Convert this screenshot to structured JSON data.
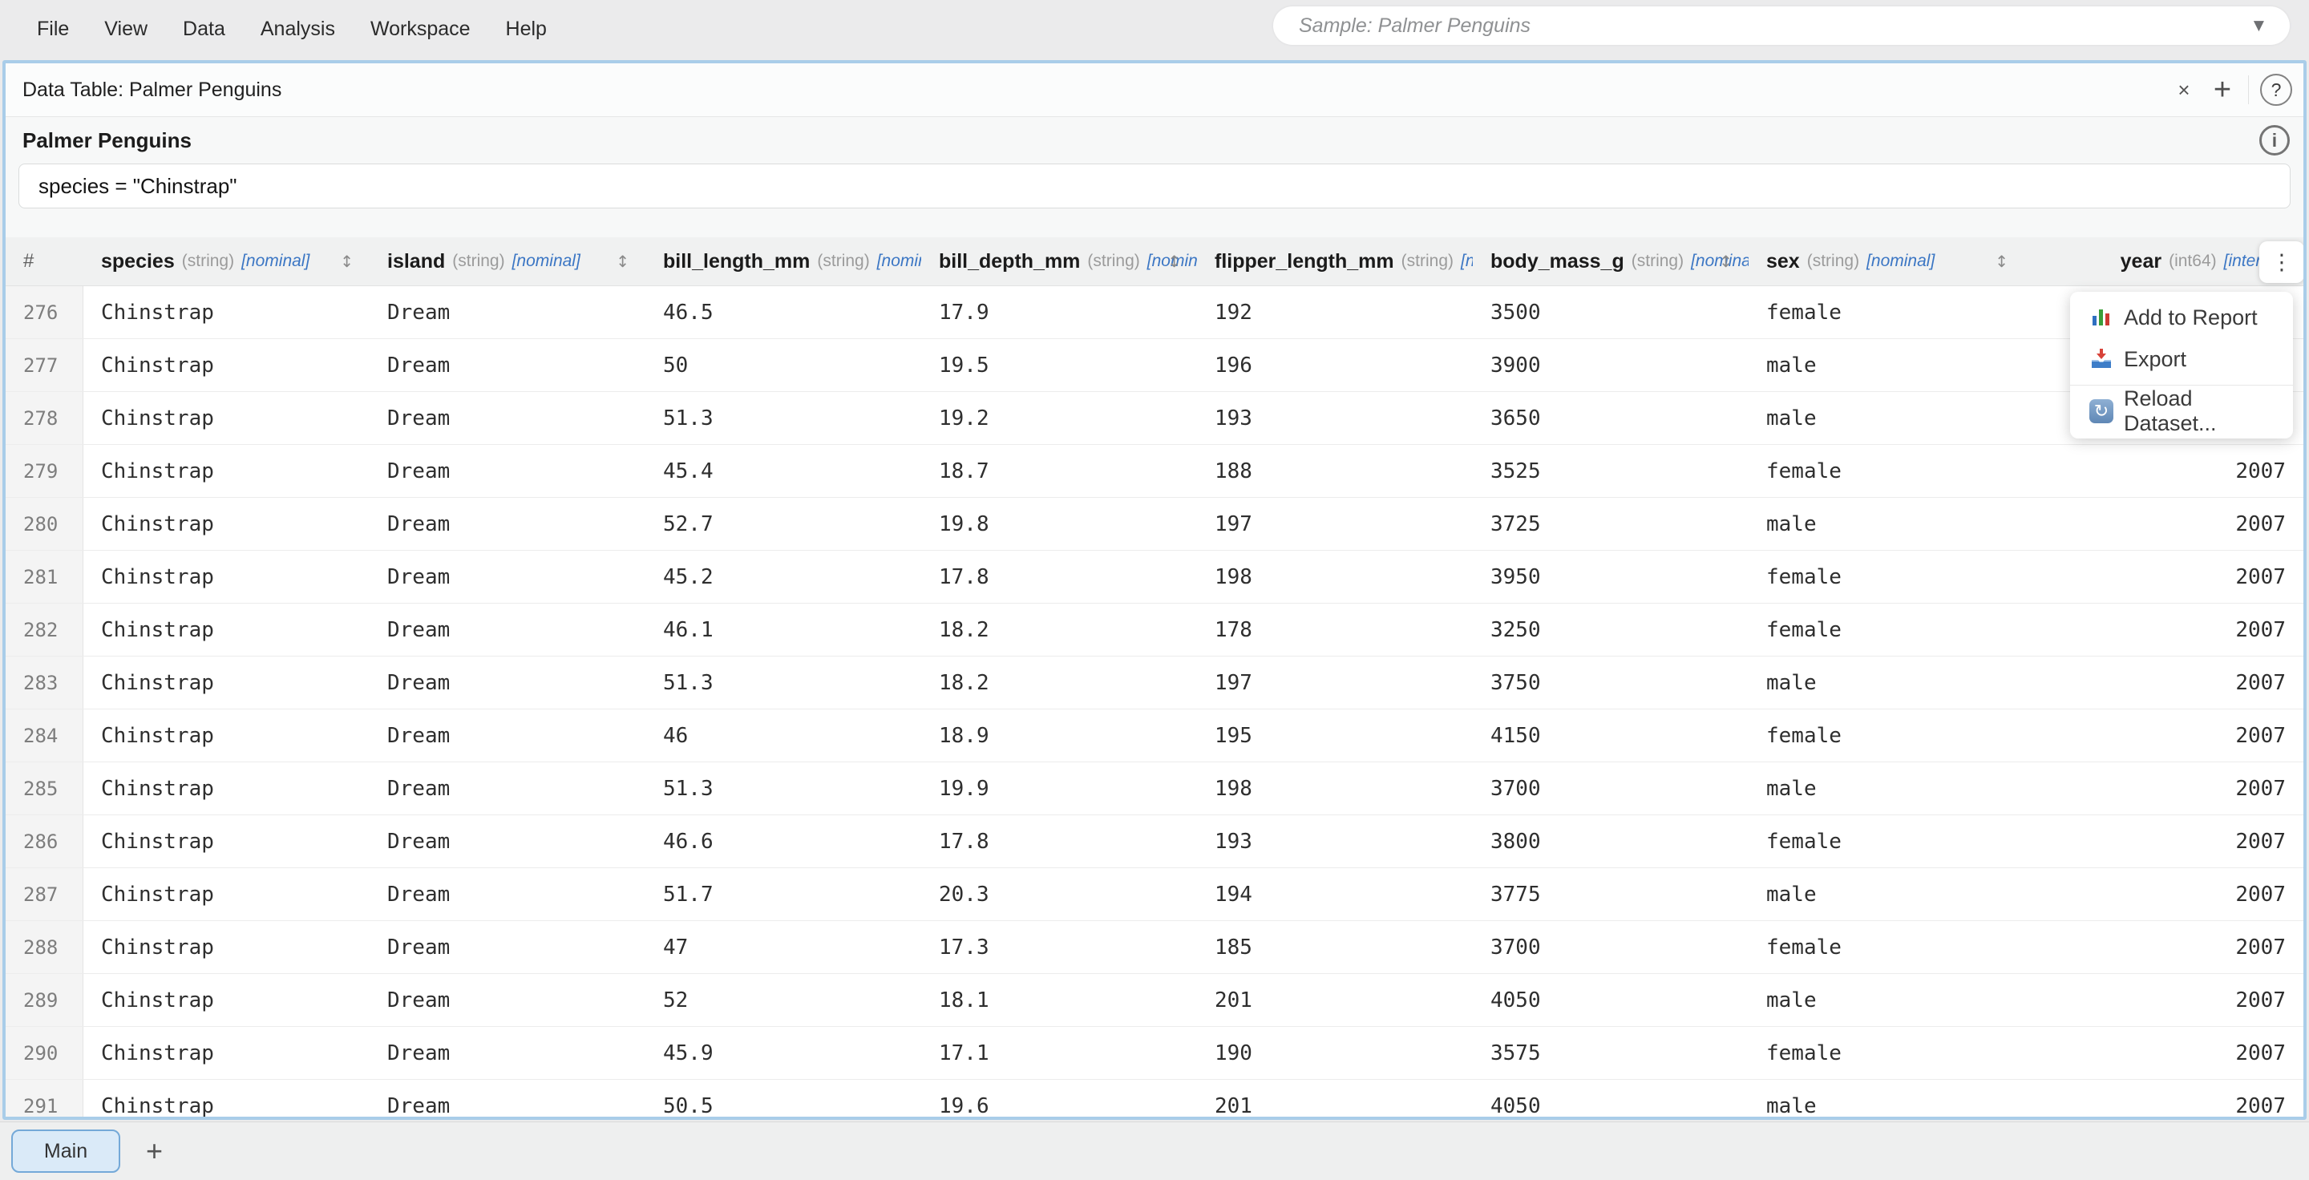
{
  "colors": {
    "panel_border": "#a9cde9",
    "role_annotation": "#3b76c4",
    "active_tab_bg": "#daeaf8",
    "active_tab_border": "#74a9d8"
  },
  "menu_bar": {
    "items": [
      "File",
      "View",
      "Data",
      "Analysis",
      "Workspace",
      "Help"
    ]
  },
  "sample_select": {
    "value": "Sample: Palmer Penguins",
    "caret": "▼"
  },
  "panel": {
    "title": "Data Table: Palmer Penguins",
    "close_label": "×",
    "add_label": "+",
    "help_label": "?",
    "dataset_title": "Palmer Penguins",
    "info_label": "i",
    "filter_value": "species = \"Chinstrap\"",
    "column_menu_label": "⋮",
    "table": {
      "index_header": "#",
      "sort_icon": "↕",
      "columns": [
        {
          "name": "species",
          "dtype": "(string)",
          "role": "[nominal]",
          "sortable": true
        },
        {
          "name": "island",
          "dtype": "(string)",
          "role": "[nominal]",
          "sortable": true
        },
        {
          "name": "bill_length_mm",
          "dtype": "(string)",
          "role": "[nominal]",
          "sortable": false
        },
        {
          "name": "bill_depth_mm",
          "dtype": "(string)",
          "role": "[nominal]",
          "sortable": true
        },
        {
          "name": "flipper_length_mm",
          "dtype": "(string)",
          "role": "[nominal]",
          "sortable": false
        },
        {
          "name": "body_mass_g",
          "dtype": "(string)",
          "role": "[nominal]",
          "sortable": true
        },
        {
          "name": "sex",
          "dtype": "(string)",
          "role": "[nominal]",
          "sortable": true
        },
        {
          "name": "year",
          "dtype": "(int64)",
          "role": "[interval]",
          "sortable": false
        }
      ],
      "rows": [
        {
          "index": "276",
          "cells": [
            "Chinstrap",
            "Dream",
            "46.5",
            "17.9",
            "192",
            "3500",
            "female",
            "2007"
          ]
        },
        {
          "index": "277",
          "cells": [
            "Chinstrap",
            "Dream",
            "50",
            "19.5",
            "196",
            "3900",
            "male",
            "2007"
          ]
        },
        {
          "index": "278",
          "cells": [
            "Chinstrap",
            "Dream",
            "51.3",
            "19.2",
            "193",
            "3650",
            "male",
            "2007"
          ]
        },
        {
          "index": "279",
          "cells": [
            "Chinstrap",
            "Dream",
            "45.4",
            "18.7",
            "188",
            "3525",
            "female",
            "2007"
          ]
        },
        {
          "index": "280",
          "cells": [
            "Chinstrap",
            "Dream",
            "52.7",
            "19.8",
            "197",
            "3725",
            "male",
            "2007"
          ]
        },
        {
          "index": "281",
          "cells": [
            "Chinstrap",
            "Dream",
            "45.2",
            "17.8",
            "198",
            "3950",
            "female",
            "2007"
          ]
        },
        {
          "index": "282",
          "cells": [
            "Chinstrap",
            "Dream",
            "46.1",
            "18.2",
            "178",
            "3250",
            "female",
            "2007"
          ]
        },
        {
          "index": "283",
          "cells": [
            "Chinstrap",
            "Dream",
            "51.3",
            "18.2",
            "197",
            "3750",
            "male",
            "2007"
          ]
        },
        {
          "index": "284",
          "cells": [
            "Chinstrap",
            "Dream",
            "46",
            "18.9",
            "195",
            "4150",
            "female",
            "2007"
          ]
        },
        {
          "index": "285",
          "cells": [
            "Chinstrap",
            "Dream",
            "51.3",
            "19.9",
            "198",
            "3700",
            "male",
            "2007"
          ]
        },
        {
          "index": "286",
          "cells": [
            "Chinstrap",
            "Dream",
            "46.6",
            "17.8",
            "193",
            "3800",
            "female",
            "2007"
          ]
        },
        {
          "index": "287",
          "cells": [
            "Chinstrap",
            "Dream",
            "51.7",
            "20.3",
            "194",
            "3775",
            "male",
            "2007"
          ]
        },
        {
          "index": "288",
          "cells": [
            "Chinstrap",
            "Dream",
            "47",
            "17.3",
            "185",
            "3700",
            "female",
            "2007"
          ]
        },
        {
          "index": "289",
          "cells": [
            "Chinstrap",
            "Dream",
            "52",
            "18.1",
            "201",
            "4050",
            "male",
            "2007"
          ]
        },
        {
          "index": "290",
          "cells": [
            "Chinstrap",
            "Dream",
            "45.9",
            "17.1",
            "190",
            "3575",
            "female",
            "2007"
          ]
        },
        {
          "index": "291",
          "cells": [
            "Chinstrap",
            "Dream",
            "50.5",
            "19.6",
            "201",
            "4050",
            "male",
            "2007"
          ]
        }
      ]
    }
  },
  "context_menu": {
    "items": [
      {
        "icon": "bar-chart-icon",
        "label": "Add to Report",
        "separator_before": false
      },
      {
        "icon": "export-tray-icon",
        "label": "Export",
        "separator_before": false
      },
      {
        "icon": "reload-icon",
        "label": "Reload Dataset...",
        "separator_before": true
      }
    ]
  },
  "tabs": {
    "active": "Main",
    "add_label": "+"
  }
}
